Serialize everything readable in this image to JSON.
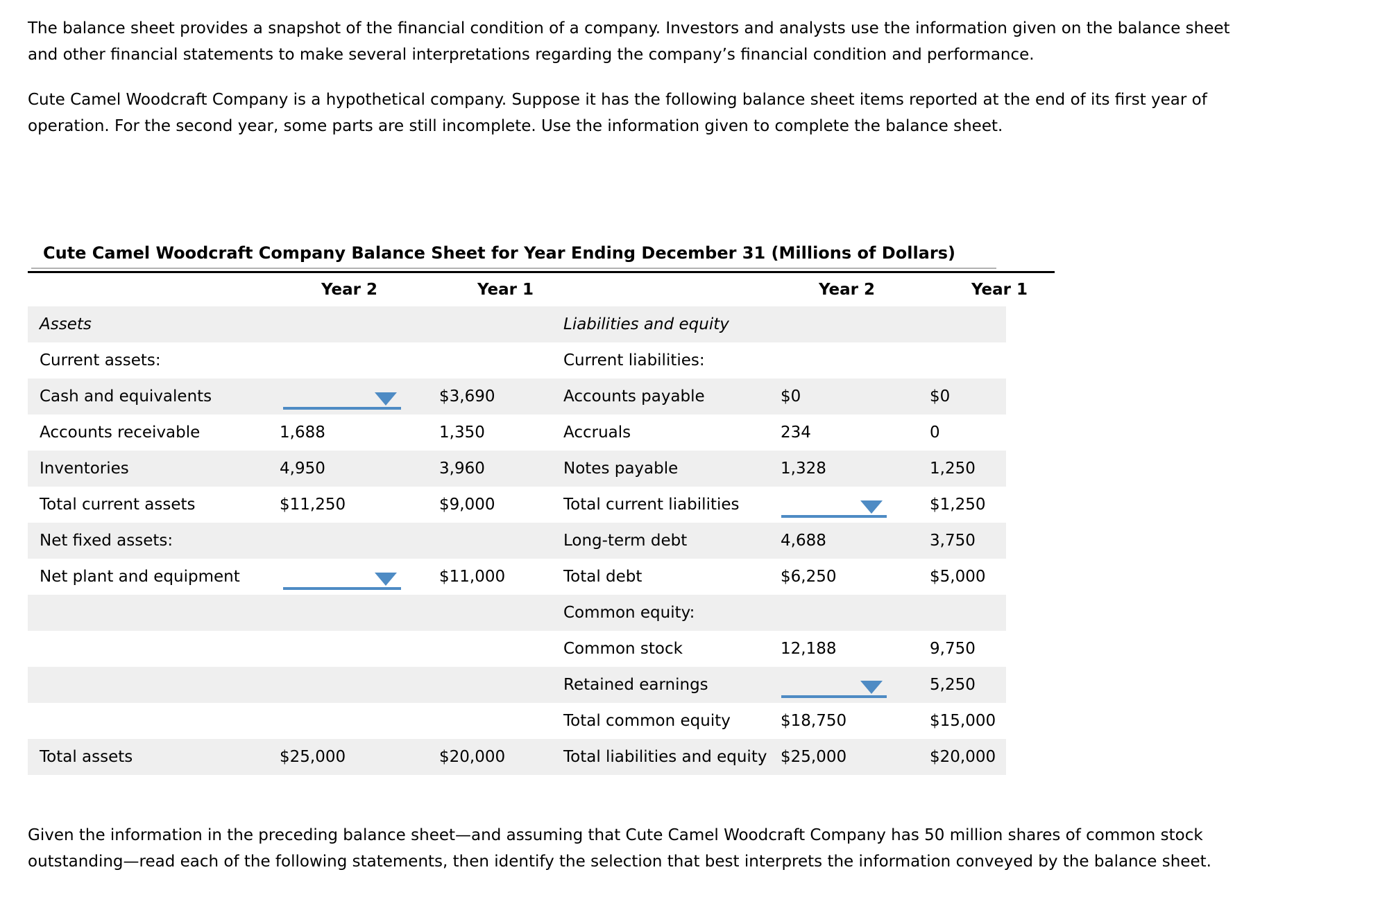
{
  "intro": {
    "paragraph1": "The balance sheet provides a snapshot of the financial condition of a company. Investors and analysts use the information given on the balance sheet\nand other financial statements to make several interpretations regarding the company’s financial condition and performance.",
    "paragraph2": "Cute Camel Woodcraft Company is a hypothetical company. Suppose it has the following balance sheet items reported at the end of its first year of\noperation. For the second year, some parts are still incomplete. Use the information given to complete the balance sheet."
  },
  "balance_sheet": {
    "title": "Cute Camel Woodcraft Company Balance Sheet for Year Ending December 31 (Millions of Dollars)",
    "column_headers": [
      "Year 2",
      "Year 1",
      "Year 2",
      "Year 1"
    ],
    "rows": [
      {
        "left": {
          "label": "Assets",
          "italic": true,
          "y2": "",
          "y1": ""
        },
        "right": {
          "label": "Liabilities and equity",
          "italic": true,
          "y2": "",
          "y1": ""
        }
      },
      {
        "left": {
          "label": "Current assets:",
          "y2": "",
          "y1": ""
        },
        "right": {
          "label": "Current liabilities:",
          "y2": "",
          "y1": ""
        }
      },
      {
        "left": {
          "label": "Cash and equivalents",
          "y2_dropdown": true,
          "y2": "",
          "y1": "$3,690"
        },
        "right": {
          "label": "Accounts payable",
          "y2": "$0",
          "y1": "$0"
        }
      },
      {
        "left": {
          "label": "Accounts receivable",
          "y2": "1,688",
          "y1": "1,350"
        },
        "right": {
          "label": "Accruals",
          "y2": "234",
          "y1": "0"
        }
      },
      {
        "left": {
          "label": "Inventories",
          "y2": "4,950",
          "y1": "3,960"
        },
        "right": {
          "label": "Notes payable",
          "y2": "1,328",
          "y1": "1,250"
        }
      },
      {
        "left": {
          "label": "Total current assets",
          "y2": "$11,250",
          "y1": "$9,000"
        },
        "right": {
          "label": "Total current liabilities",
          "y2_dropdown": true,
          "y2": "",
          "y1": "$1,250"
        }
      },
      {
        "left": {
          "label": "Net fixed assets:",
          "y2": "",
          "y1": ""
        },
        "right": {
          "label": "Long-term debt",
          "y2": "4,688",
          "y1": "3,750"
        }
      },
      {
        "left": {
          "label": "Net plant and equipment",
          "y2_dropdown": true,
          "y2": "",
          "y1": "$11,000"
        },
        "right": {
          "label": "Total debt",
          "y2": "$6,250",
          "y1": "$5,000"
        }
      },
      {
        "left": {
          "label": "",
          "y2": "",
          "y1": ""
        },
        "right": {
          "label": "Common equity:",
          "y2": "",
          "y1": ""
        }
      },
      {
        "left": {
          "label": "",
          "y2": "",
          "y1": ""
        },
        "right": {
          "label": "Common stock",
          "y2": "12,188",
          "y1": "9,750"
        }
      },
      {
        "left": {
          "label": "",
          "y2": "",
          "y1": ""
        },
        "right": {
          "label": "Retained earnings",
          "y2_dropdown": true,
          "y2": "",
          "y1": "5,250"
        }
      },
      {
        "left": {
          "label": "",
          "y2": "",
          "y1": ""
        },
        "right": {
          "label": "Total common equity",
          "y2": "$18,750",
          "y1": "$15,000"
        }
      },
      {
        "left": {
          "label": "Total assets",
          "y2": "$25,000",
          "y1": "$20,000"
        },
        "right": {
          "label": "Total liabilities and equity",
          "y2": "$25,000",
          "y1": "$20,000"
        }
      }
    ]
  },
  "closing": {
    "paragraph": "Given the information in the preceding balance sheet—and assuming that Cute Camel Woodcraft Company has 50 million shares of common stock\noutstanding—read each of the following statements, then identify the selection that best interprets the information conveyed by the balance sheet."
  },
  "colors": {
    "accent_blue": "#4e8bc4",
    "row_stripe": "#efefef",
    "title_rule_gray": "#b1b1b1",
    "table_rule_black": "#000000"
  }
}
